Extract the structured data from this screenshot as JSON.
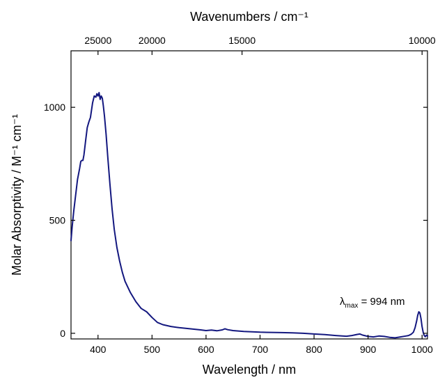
{
  "chart_data": {
    "type": "line",
    "xlabel": "Wavelength / nm",
    "x2label": "Wavenumbers / cm⁻¹",
    "ylabel": "Molar Absorptivity / M⁻¹ cm⁻¹",
    "xlim": [
      350,
      1010
    ],
    "ylim": [
      -25,
      1250
    ],
    "x_ticks": [
      400,
      500,
      600,
      700,
      800,
      900,
      1000
    ],
    "y_ticks": [
      0,
      500,
      1000
    ],
    "x2_ticks_wavenumber": [
      25000,
      20000,
      15000,
      10000
    ],
    "grid": false,
    "annotation": {
      "prefix": "λ",
      "subscript": "max",
      "suffix": " = 994 nm",
      "x": 994,
      "y": 95
    },
    "series": [
      {
        "color": "#13177f",
        "x": [
          350,
          352,
          355,
          358,
          362,
          366,
          368,
          370,
          372,
          374,
          377,
          380,
          383,
          386,
          390,
          393,
          396,
          398,
          400,
          402,
          404,
          406,
          408,
          410,
          412,
          415,
          418,
          422,
          426,
          430,
          435,
          440,
          445,
          450,
          460,
          470,
          480,
          490,
          500,
          510,
          520,
          535,
          550,
          570,
          590,
          600,
          610,
          620,
          630,
          635,
          640,
          650,
          670,
          700,
          720,
          740,
          760,
          780,
          800,
          820,
          840,
          860,
          870,
          880,
          885,
          890,
          900,
          910,
          920,
          930,
          940,
          950,
          960,
          970,
          975,
          980,
          984,
          987,
          990,
          992,
          994,
          996,
          998,
          1000,
          1002,
          1004,
          1006,
          1008,
          1010
        ],
        "y": [
          410,
          470,
          540,
          600,
          680,
          730,
          760,
          765,
          765,
          790,
          850,
          910,
          935,
          955,
          1020,
          1050,
          1045,
          1060,
          1050,
          1065,
          1035,
          1050,
          1040,
          1005,
          960,
          880,
          780,
          660,
          550,
          460,
          380,
          320,
          270,
          230,
          180,
          140,
          110,
          95,
          70,
          48,
          38,
          30,
          25,
          20,
          15,
          12,
          14,
          11,
          15,
          20,
          16,
          12,
          8,
          5,
          4,
          3,
          2,
          0,
          -3,
          -6,
          -10,
          -13,
          -10,
          -5,
          -3,
          -8,
          -14,
          -16,
          -12,
          -14,
          -18,
          -20,
          -16,
          -12,
          -10,
          -4,
          5,
          25,
          55,
          80,
          95,
          90,
          65,
          30,
          5,
          -10,
          -15,
          -8,
          -12
        ]
      }
    ]
  }
}
